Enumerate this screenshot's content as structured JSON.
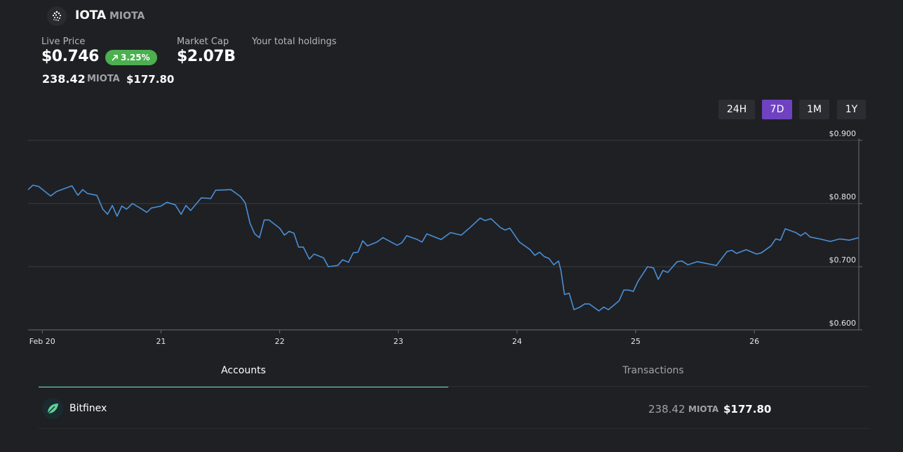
{
  "header": {
    "title": "IOTA",
    "symbol": "MIOTA"
  },
  "price": {
    "label": "Live Price",
    "value": "$0.746",
    "change": "3.25%"
  },
  "market_cap": {
    "label": "Market Cap",
    "value": "$2.07B"
  },
  "holdings": {
    "label": "Your total holdings",
    "amount": "238.42",
    "symbol": "MIOTA",
    "value": "$177.80"
  },
  "range_buttons": [
    {
      "label": "24H",
      "active": false
    },
    {
      "label": "7D",
      "active": true
    },
    {
      "label": "1M",
      "active": false
    },
    {
      "label": "1Y",
      "active": false
    }
  ],
  "chart_data": {
    "type": "line",
    "color": "#4a8fd6",
    "grid": true,
    "x": [
      19.88,
      19.92,
      19.97,
      20.07,
      20.12,
      20.25,
      20.3,
      20.34,
      20.38,
      20.46,
      20.51,
      20.55,
      20.59,
      20.63,
      20.67,
      20.71,
      20.76,
      20.84,
      20.88,
      20.92,
      21.0,
      21.05,
      21.12,
      21.17,
      21.21,
      21.25,
      21.34,
      21.42,
      21.46,
      21.59,
      21.67,
      21.71,
      21.75,
      21.79,
      21.83,
      21.87,
      21.91,
      22.0,
      22.04,
      22.08,
      22.12,
      22.16,
      22.2,
      22.25,
      22.29,
      22.37,
      22.41,
      22.49,
      22.53,
      22.58,
      22.62,
      22.66,
      22.7,
      22.74,
      22.82,
      22.87,
      22.99,
      23.03,
      23.07,
      23.16,
      23.2,
      23.24,
      23.36,
      23.44,
      23.53,
      23.61,
      23.69,
      23.73,
      23.78,
      23.86,
      23.9,
      23.94,
      24.02,
      24.11,
      24.15,
      24.19,
      24.23,
      24.27,
      24.31,
      24.35,
      24.37,
      24.4,
      24.44,
      24.48,
      24.53,
      24.57,
      24.61,
      24.69,
      24.73,
      24.77,
      24.86,
      24.9,
      24.94,
      24.98,
      25.02,
      25.1,
      25.15,
      25.19,
      25.23,
      25.27,
      25.35,
      25.39,
      25.44,
      25.52,
      25.68,
      25.77,
      25.81,
      25.85,
      25.93,
      26.02,
      26.06,
      26.14,
      26.18,
      26.22,
      26.26,
      26.35,
      26.39,
      26.43,
      26.47,
      26.55,
      26.64,
      26.72,
      26.8,
      26.88
    ],
    "values": [
      0.822,
      0.829,
      0.827,
      0.812,
      0.819,
      0.828,
      0.813,
      0.822,
      0.816,
      0.813,
      0.791,
      0.783,
      0.797,
      0.78,
      0.796,
      0.791,
      0.8,
      0.791,
      0.786,
      0.793,
      0.796,
      0.802,
      0.798,
      0.783,
      0.797,
      0.789,
      0.809,
      0.808,
      0.821,
      0.822,
      0.811,
      0.801,
      0.769,
      0.752,
      0.746,
      0.774,
      0.774,
      0.761,
      0.75,
      0.756,
      0.753,
      0.731,
      0.731,
      0.712,
      0.72,
      0.714,
      0.7,
      0.702,
      0.711,
      0.707,
      0.722,
      0.723,
      0.741,
      0.733,
      0.739,
      0.746,
      0.734,
      0.738,
      0.749,
      0.743,
      0.739,
      0.752,
      0.743,
      0.754,
      0.75,
      0.763,
      0.777,
      0.773,
      0.776,
      0.762,
      0.758,
      0.761,
      0.739,
      0.727,
      0.718,
      0.723,
      0.716,
      0.713,
      0.703,
      0.709,
      0.694,
      0.656,
      0.658,
      0.632,
      0.636,
      0.641,
      0.641,
      0.63,
      0.636,
      0.632,
      0.646,
      0.663,
      0.663,
      0.661,
      0.677,
      0.7,
      0.698,
      0.68,
      0.694,
      0.691,
      0.708,
      0.709,
      0.703,
      0.708,
      0.702,
      0.724,
      0.726,
      0.721,
      0.727,
      0.72,
      0.722,
      0.733,
      0.744,
      0.742,
      0.76,
      0.754,
      0.749,
      0.754,
      0.747,
      0.744,
      0.74,
      0.744,
      0.742,
      0.746
    ],
    "xlim": [
      19.88,
      26.88
    ],
    "xticks": [
      {
        "value": 20,
        "label": "Feb 20"
      },
      21,
      22,
      23,
      24,
      25,
      26
    ],
    "ylim": [
      0.6,
      0.9
    ],
    "yticks": [
      {
        "value": 0.6,
        "label": "$0.600"
      },
      {
        "value": 0.7,
        "label": "$0.700"
      },
      {
        "value": 0.8,
        "label": "$0.800"
      },
      {
        "value": 0.9,
        "label": "$0.900"
      }
    ]
  },
  "tabs": [
    {
      "label": "Accounts",
      "active": true
    },
    {
      "label": "Transactions",
      "active": false
    }
  ],
  "accounts": [
    {
      "name": "Bitfinex",
      "amount": "238.42",
      "symbol": "MIOTA",
      "value": "$177.80"
    }
  ]
}
